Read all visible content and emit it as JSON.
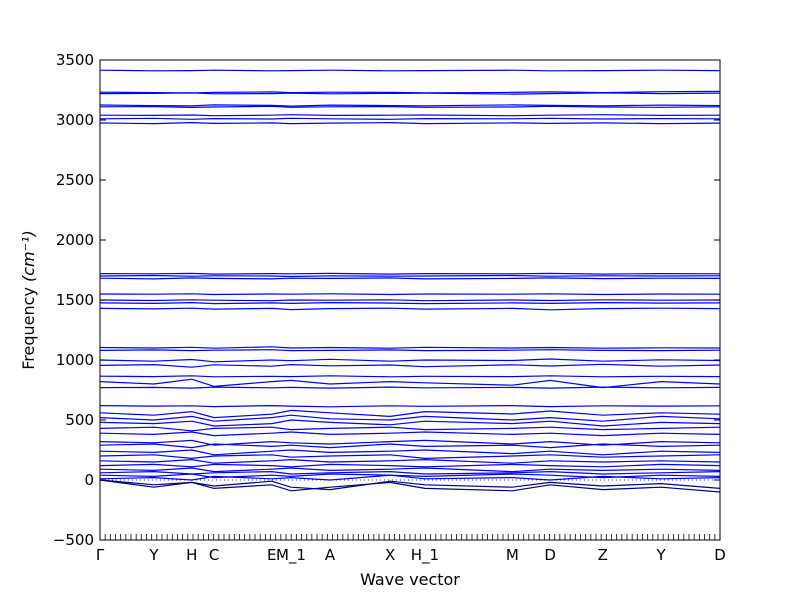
{
  "chart_data": {
    "type": "line",
    "title": "",
    "xlabel": "Wave vector",
    "ylabel": "Frequency ",
    "ylabel_unit": "(cm⁻¹)",
    "ylim": [
      -500,
      3500
    ],
    "yticks": [
      -500,
      0,
      500,
      1000,
      1500,
      2000,
      2500,
      3000,
      3500
    ],
    "grid": false,
    "legend": "none",
    "line_color": "#0000ff",
    "band_edge_color": "#000080",
    "x_special_points": [
      {
        "label": "Γ",
        "x": 0.0
      },
      {
        "label": "Y",
        "x": 0.087
      },
      {
        "label": "H",
        "x": 0.148
      },
      {
        "label": "C",
        "x": 0.184
      },
      {
        "label": "E",
        "x": 0.277
      },
      {
        "label": "M_1",
        "x": 0.308
      },
      {
        "label": "A",
        "x": 0.371
      },
      {
        "label": "X",
        "x": 0.468
      },
      {
        "label": "H_1",
        "x": 0.524
      },
      {
        "label": "M",
        "x": 0.665
      },
      {
        "label": "D",
        "x": 0.726
      },
      {
        "label": "Z",
        "x": 0.811
      },
      {
        "label": "Y",
        "x": 0.905
      },
      {
        "label": "D",
        "x": 1.0
      }
    ],
    "series": [
      {
        "values": [
          3415,
          3410,
          3412,
          3415,
          3410,
          3412,
          3415,
          3410,
          3412,
          3415,
          3410,
          3412,
          3415,
          3412
        ]
      },
      {
        "values": [
          3232,
          3228,
          3225,
          3230,
          3234,
          3228,
          3232,
          3230,
          3226,
          3230,
          3234,
          3228,
          3236,
          3238
        ]
      },
      {
        "values": [
          3220,
          3222,
          3226,
          3218,
          3220,
          3224,
          3218,
          3222,
          3224,
          3216,
          3220,
          3226,
          3220,
          3224
        ]
      },
      {
        "values": [
          3125,
          3120,
          3118,
          3126,
          3122,
          3116,
          3124,
          3120,
          3118,
          3126,
          3122,
          3118,
          3124,
          3120
        ]
      },
      {
        "values": [
          3110,
          3112,
          3105,
          3108,
          3114,
          3106,
          3110,
          3112,
          3106,
          3108,
          3114,
          3108,
          3106,
          3110
        ]
      },
      {
        "values": [
          3040,
          3038,
          3042,
          3036,
          3040,
          3044,
          3038,
          3040,
          3042,
          3036,
          3040,
          3044,
          3038,
          3040
        ]
      },
      {
        "values": [
          3010,
          3014,
          3006,
          3012,
          3008,
          3014,
          3010,
          3006,
          3012,
          3010,
          3014,
          3008,
          3012,
          3010
        ]
      },
      {
        "values": [
          2975,
          2970,
          2978,
          2972,
          2976,
          2970,
          2974,
          2978,
          2970,
          2976,
          2972,
          2976,
          2970,
          2974
        ]
      },
      {
        "values": [
          1720,
          1718,
          1722,
          1716,
          1720,
          1718,
          1722,
          1716,
          1720,
          1718,
          1722,
          1716,
          1720,
          1718
        ]
      },
      {
        "values": [
          1700,
          1704,
          1698,
          1702,
          1700,
          1696,
          1702,
          1698,
          1700,
          1704,
          1698,
          1702,
          1700,
          1702
        ]
      },
      {
        "values": [
          1682,
          1676,
          1684,
          1680,
          1676,
          1682,
          1680,
          1684,
          1676,
          1680,
          1684,
          1678,
          1682,
          1680
        ]
      },
      {
        "values": [
          1550,
          1548,
          1552,
          1546,
          1550,
          1548,
          1552,
          1546,
          1550,
          1548,
          1552,
          1546,
          1550,
          1548
        ]
      },
      {
        "values": [
          1500,
          1496,
          1502,
          1498,
          1494,
          1500,
          1498,
          1502,
          1494,
          1500,
          1496,
          1502,
          1498,
          1500
        ]
      },
      {
        "values": [
          1476,
          1472,
          1478,
          1470,
          1476,
          1472,
          1478,
          1474,
          1470,
          1476,
          1472,
          1478,
          1474,
          1476
        ]
      },
      {
        "values": [
          1430,
          1426,
          1432,
          1424,
          1430,
          1420,
          1428,
          1432,
          1424,
          1430,
          1418,
          1428,
          1432,
          1428
        ]
      },
      {
        "values": [
          1104,
          1100,
          1106,
          1098,
          1110,
          1100,
          1104,
          1098,
          1106,
          1100,
          1104,
          1098,
          1102,
          1100
        ]
      },
      {
        "values": [
          1080,
          1084,
          1078,
          1082,
          1086,
          1078,
          1080,
          1084,
          1078,
          1082,
          1086,
          1080,
          1078,
          1082
        ]
      },
      {
        "values": [
          1000,
          990,
          1004,
          985,
          1000,
          994,
          1006,
          990,
          1000,
          996,
          1008,
          990,
          1002,
          996
        ]
      },
      {
        "values": [
          955,
          962,
          940,
          960,
          948,
          962,
          952,
          958,
          944,
          960,
          950,
          964,
          948,
          958
        ]
      },
      {
        "values": [
          865,
          862,
          868,
          860,
          864,
          862,
          868,
          860,
          864,
          862,
          868,
          860,
          864,
          862
        ]
      },
      {
        "values": [
          820,
          800,
          840,
          780,
          820,
          830,
          800,
          820,
          810,
          790,
          830,
          770,
          820,
          800
        ]
      },
      {
        "values": [
          770,
          772,
          766,
          774,
          768,
          772,
          766,
          774,
          768,
          772,
          766,
          774,
          768,
          772
        ]
      },
      {
        "values": [
          620,
          616,
          618,
          612,
          620,
          616,
          610,
          618,
          614,
          620,
          612,
          618,
          616,
          618
        ]
      },
      {
        "values": [
          560,
          540,
          570,
          520,
          548,
          580,
          560,
          530,
          570,
          550,
          575,
          540,
          560,
          548
        ]
      },
      {
        "values": [
          520,
          500,
          530,
          490,
          520,
          540,
          510,
          500,
          530,
          500,
          520,
          490,
          530,
          510
        ]
      },
      {
        "values": [
          480,
          470,
          490,
          450,
          470,
          500,
          480,
          460,
          490,
          470,
          490,
          450,
          480,
          470
        ]
      },
      {
        "values": [
          430,
          440,
          410,
          430,
          440,
          420,
          430,
          440,
          420,
          430,
          440,
          420,
          430,
          440
        ]
      },
      {
        "values": [
          390,
          380,
          400,
          370,
          390,
          400,
          380,
          390,
          400,
          380,
          390,
          370,
          390,
          380
        ]
      },
      {
        "values": [
          320,
          310,
          330,
          290,
          320,
          310,
          300,
          320,
          330,
          300,
          320,
          290,
          320,
          310
        ]
      },
      {
        "values": [
          290,
          300,
          270,
          300,
          280,
          290,
          270,
          300,
          280,
          290,
          270,
          300,
          280,
          290
        ]
      },
      {
        "values": [
          240,
          230,
          250,
          210,
          240,
          250,
          230,
          240,
          250,
          220,
          240,
          210,
          240,
          230
        ]
      },
      {
        "values": [
          200,
          210,
          180,
          200,
          210,
          190,
          200,
          210,
          180,
          200,
          210,
          190,
          200,
          210
        ]
      },
      {
        "values": [
          160,
          150,
          170,
          140,
          160,
          170,
          150,
          160,
          170,
          140,
          160,
          150,
          160,
          150
        ]
      },
      {
        "values": [
          120,
          130,
          110,
          130,
          120,
          110,
          130,
          120,
          110,
          130,
          120,
          110,
          130,
          120
        ]
      },
      {
        "values": [
          90,
          80,
          100,
          70,
          90,
          100,
          80,
          90,
          100,
          70,
          90,
          80,
          90,
          80
        ]
      },
      {
        "values": [
          60,
          70,
          50,
          60,
          70,
          50,
          60,
          70,
          50,
          60,
          70,
          50,
          60,
          70
        ]
      },
      {
        "values": [
          40,
          30,
          50,
          20,
          40,
          30,
          50,
          40,
          30,
          50,
          40,
          20,
          40,
          30
        ]
      },
      {
        "values": [
          10,
          20,
          0,
          30,
          10,
          20,
          0,
          40,
          10,
          20,
          0,
          30,
          10,
          20
        ]
      },
      {
        "values": [
          0,
          -40,
          -20,
          -50,
          -10,
          -60,
          -80,
          -10,
          -40,
          -60,
          -20,
          -50,
          -30,
          -70
        ]
      },
      {
        "values": [
          0,
          -60,
          -20,
          -70,
          -40,
          -90,
          -60,
          -20,
          -70,
          -90,
          -40,
          -80,
          -60,
          -100
        ]
      }
    ]
  }
}
